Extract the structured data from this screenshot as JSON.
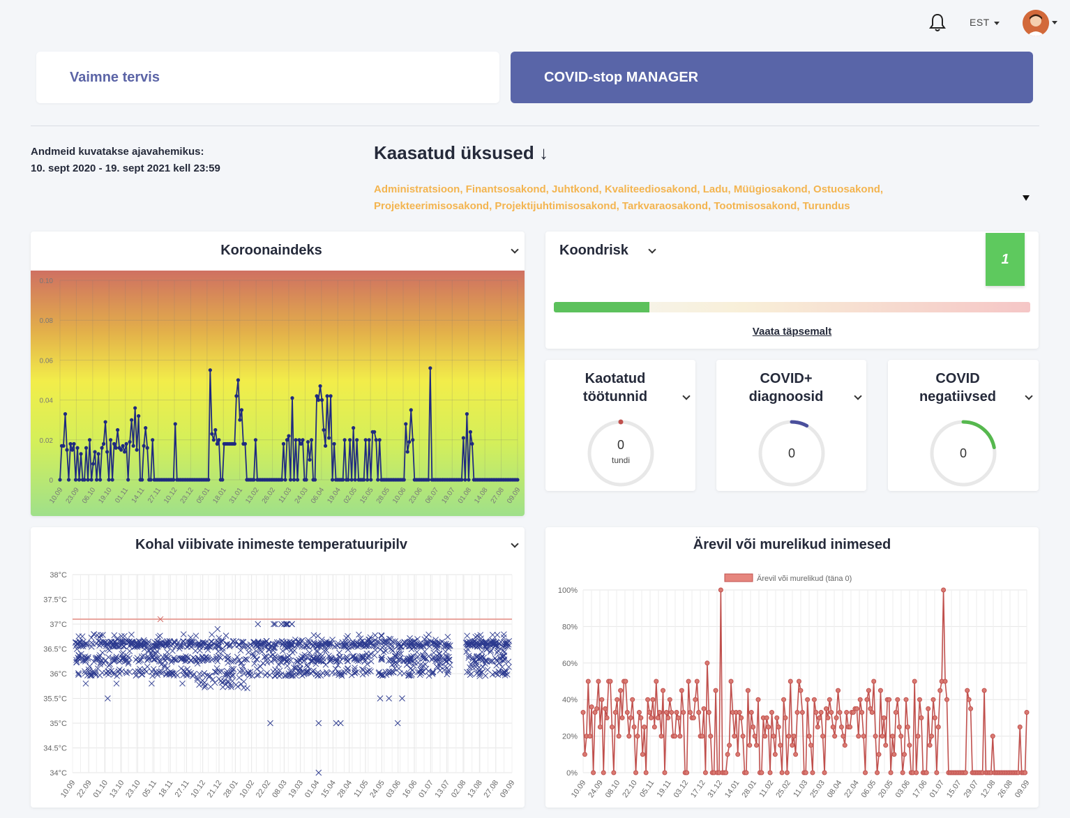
{
  "header": {
    "language": "EST"
  },
  "tabs": [
    {
      "label": "Vaimne tervis"
    },
    {
      "label": "COVID-stop MANAGER"
    }
  ],
  "range": {
    "label": "Andmeid kuvatakse ajavahemikus:",
    "value": "10. sept 2020 - 19. sept 2021 kell 23:59"
  },
  "units": {
    "title": "Kaasatud üksused ↓",
    "list": "Administratsioon, Finantsosakond, Juhtkond, Kvaliteediosakond, Ladu, Müügiosakond, Ostuosakond, Projekteerimisosakond, Projektijuhtimisosakond, Tarkvaraosakond, Tootmisosakond, Turundus"
  },
  "korona": {
    "title": "Koroonaindeks",
    "chart_data": {
      "type": "line",
      "ylim": [
        0,
        0.1
      ],
      "yticks": [
        "0",
        "0.02",
        "0.04",
        "0.06",
        "0.08",
        "0.10"
      ],
      "xticks": [
        "10.09",
        "23.09",
        "06.10",
        "19.10",
        "01.11",
        "14.11",
        "27.11",
        "10.12",
        "23.12",
        "05.01",
        "18.01",
        "31.01",
        "13.02",
        "26.02",
        "11.03",
        "24.03",
        "06.04",
        "19.04",
        "02.05",
        "15.05",
        "28.05",
        "10.06",
        "23.06",
        "06.07",
        "19.07",
        "01.08",
        "14.08",
        "27.08",
        "09.09"
      ],
      "series": [
        {
          "color": "#1f2a80",
          "values": [
            0,
            0.017,
            0.017,
            0.033,
            0.015,
            0,
            0.018,
            0.015,
            0.018,
            0,
            0.016,
            0,
            0.013,
            0,
            0,
            0.016,
            0,
            0.02,
            0,
            0.008,
            0.014,
            0,
            0.013,
            0,
            0.016,
            0.018,
            0.029,
            0.014,
            0,
            0.02,
            0,
            0.018,
            0.016,
            0.025,
            0.016,
            0.015,
            0.017,
            0.014,
            0.018,
            0,
            0.019,
            0.03,
            0.017,
            0.036,
            0.015,
            0.032,
            0,
            0,
            0.017,
            0.026,
            0.016,
            0,
            0,
            0.02,
            0,
            0,
            0,
            0,
            0,
            0,
            0,
            0,
            0,
            0,
            0,
            0,
            0.028,
            0,
            0,
            0,
            0,
            0,
            0,
            0,
            0,
            0,
            0,
            0,
            0,
            0,
            0,
            0,
            0,
            0,
            0,
            0,
            0.055,
            0.023,
            0.02,
            0.025,
            0.018,
            0.02,
            0,
            0,
            0.018,
            0.018,
            0.018,
            0.018,
            0.018,
            0.018,
            0.018,
            0.042,
            0.05,
            0.03,
            0.035,
            0.018,
            0.018,
            0,
            0,
            0,
            0,
            0,
            0.02,
            0,
            0,
            0,
            0,
            0,
            0,
            0,
            0,
            0,
            0,
            0,
            0,
            0,
            0,
            0,
            0.018,
            0,
            0.02,
            0.022,
            0,
            0.041,
            0,
            0.02,
            0,
            0.02,
            0.018,
            0.02,
            0,
            0,
            0.019,
            0.01,
            0.02,
            0,
            0,
            0.042,
            0.04,
            0.047,
            0.04,
            0.025,
            0.017,
            0.042,
            0.021,
            0.042,
            0,
            0.018,
            0,
            0,
            0,
            0,
            0,
            0.02,
            0,
            0,
            0.02,
            0,
            0.026,
            0,
            0.02,
            0,
            0,
            0,
            0,
            0.02,
            0,
            0.02,
            0,
            0.024,
            0.024,
            0.02,
            0,
            0.02,
            0,
            0,
            0,
            0,
            0,
            0,
            0,
            0,
            0,
            0,
            0,
            0,
            0,
            0,
            0.028,
            0.014,
            0.019,
            0.035,
            0.02,
            0,
            0,
            0,
            0,
            0,
            0,
            0,
            0,
            0,
            0.056,
            0,
            0,
            0,
            0,
            0,
            0,
            0,
            0,
            0,
            0,
            0,
            0,
            0,
            0,
            0,
            0,
            0,
            0,
            0.021,
            0,
            0.033,
            0,
            0.024,
            0.018,
            0,
            0,
            0,
            0,
            0,
            0,
            0,
            0,
            0,
            0,
            0,
            0,
            0,
            0,
            0,
            0,
            0,
            0,
            0,
            0,
            0,
            0,
            0,
            0,
            0,
            0
          ]
        }
      ]
    }
  },
  "koondrisk": {
    "title": "Koondrisk",
    "badge": "1",
    "level": 0.2,
    "link": "Vaata täpsemalt"
  },
  "small_cards": [
    {
      "title_1": "Kaotatud",
      "title_2": "töötunnid",
      "value": "0",
      "unit": "tundi",
      "color": "#c0504d",
      "progress": 0
    },
    {
      "title_1": "COVID+",
      "title_2": "diagnoosid",
      "value": "0",
      "unit": "",
      "color": "#4a4f9c",
      "progress": 0.08
    },
    {
      "title_1": "COVID",
      "title_2": "negatiivsed",
      "value": "0",
      "unit": "",
      "color": "#56b84e",
      "progress": 0.22
    }
  ],
  "temp": {
    "title": "Kohal viibivate inimeste temperatuuripilv",
    "chart_data": {
      "type": "scatter",
      "ylim": [
        34,
        38
      ],
      "yticks": [
        "34°C",
        "34.5°C",
        "35°C",
        "35.5°C",
        "36°C",
        "36.5°C",
        "37°C",
        "37.5°C",
        "38°C"
      ],
      "xticks": [
        "10.09",
        "22.09",
        "01.10",
        "13.10",
        "23.10",
        "05.11",
        "18.11",
        "27.11",
        "10.12",
        "21.12",
        "28.01",
        "10.02",
        "22.02",
        "08.03",
        "19.03",
        "01.04",
        "15.04",
        "28.04",
        "11.05",
        "24.05",
        "03.06",
        "16.06",
        "01.07",
        "13.07",
        "02.08",
        "13.08",
        "27.08",
        "09.09"
      ],
      "threshold": 37.1,
      "threshold_color": "#e8a29b",
      "marker_color": "#2c3a8f",
      "outliers": [
        [
          0.03,
          35.8
        ],
        [
          0.08,
          35.5
        ],
        [
          0.1,
          35.8
        ],
        [
          0.18,
          35.8
        ],
        [
          0.2,
          37.1
        ],
        [
          0.25,
          35.8
        ],
        [
          0.45,
          35.0
        ],
        [
          0.56,
          35.0
        ],
        [
          0.6,
          35.0
        ],
        [
          0.61,
          35.0
        ],
        [
          0.56,
          34.0
        ],
        [
          0.7,
          35.5
        ],
        [
          0.72,
          35.5
        ],
        [
          0.75,
          35.5
        ],
        [
          0.74,
          35.0
        ],
        [
          0.33,
          36.9
        ]
      ]
    }
  },
  "arev": {
    "title": "Ärevil või murelikud inimesed",
    "legend": "Ärevil või murelikud (täna 0)",
    "chart_data": {
      "type": "line",
      "ylim": [
        0,
        100
      ],
      "yticks": [
        "0%",
        "20%",
        "40%",
        "60%",
        "80%",
        "100%"
      ],
      "xticks": [
        "10.09",
        "24.09",
        "08.10",
        "22.10",
        "05.11",
        "19.11",
        "03.12",
        "17.12",
        "31.12",
        "14.01",
        "28.01",
        "11.02",
        "25.02",
        "11.03",
        "25.03",
        "08.04",
        "22.04",
        "06.05",
        "20.05",
        "03.06",
        "17.06",
        "01.07",
        "15.07",
        "29.07",
        "12.08",
        "26.08",
        "09.09"
      ],
      "series": [
        {
          "name": "Ärevil või murelikud (täna 0)",
          "color": "#c0504d",
          "values": [
            33,
            10,
            20,
            50,
            20,
            36,
            0,
            33,
            35,
            50,
            25,
            40,
            0,
            35,
            30,
            50,
            50,
            25,
            0,
            33,
            40,
            20,
            45,
            30,
            50,
            50,
            33,
            20,
            30,
            40,
            25,
            0,
            20,
            33,
            30,
            10,
            25,
            0,
            40,
            33,
            30,
            40,
            25,
            50,
            30,
            33,
            20,
            45,
            0,
            33,
            30,
            40,
            33,
            20,
            20,
            33,
            30,
            20,
            45,
            33,
            0,
            0,
            50,
            33,
            30,
            30,
            40,
            50,
            33,
            20,
            20,
            35,
            0,
            60,
            33,
            20,
            0,
            0,
            45,
            0,
            0,
            100,
            0,
            0,
            0,
            10,
            15,
            50,
            33,
            20,
            33,
            10,
            33,
            30,
            20,
            0,
            0,
            45,
            15,
            33,
            25,
            20,
            15,
            40,
            0,
            0,
            30,
            20,
            30,
            25,
            0,
            33,
            20,
            10,
            30,
            25,
            15,
            0,
            40,
            30,
            0,
            20,
            50,
            15,
            20,
            10,
            33,
            50,
            45,
            33,
            0,
            0,
            40,
            20,
            15,
            0,
            40,
            33,
            25,
            30,
            33,
            20,
            0,
            35,
            30,
            40,
            33,
            25,
            20,
            30,
            45,
            33,
            25,
            20,
            15,
            33,
            25,
            25,
            33,
            33,
            35,
            35,
            20,
            40,
            33,
            20,
            0,
            40,
            45,
            35,
            33,
            50,
            20,
            0,
            10,
            45,
            20,
            30,
            15,
            40,
            40,
            0,
            20,
            10,
            33,
            40,
            25,
            20,
            0,
            10,
            40,
            25,
            15,
            0,
            0,
            50,
            0,
            20,
            40,
            30,
            0,
            0,
            0,
            35,
            15,
            20,
            40,
            30,
            0,
            25,
            45,
            50,
            100,
            50,
            40,
            0,
            0,
            0,
            0,
            0,
            0,
            0,
            0,
            0,
            0,
            0,
            45,
            40,
            35,
            0,
            0,
            0,
            0,
            0,
            0,
            0,
            45,
            0,
            0,
            0,
            0,
            20,
            0,
            0,
            0,
            0,
            0,
            0,
            0,
            0,
            0,
            0,
            0,
            0,
            0,
            0,
            0,
            25,
            0,
            0,
            0,
            33
          ]
        }
      ]
    }
  }
}
